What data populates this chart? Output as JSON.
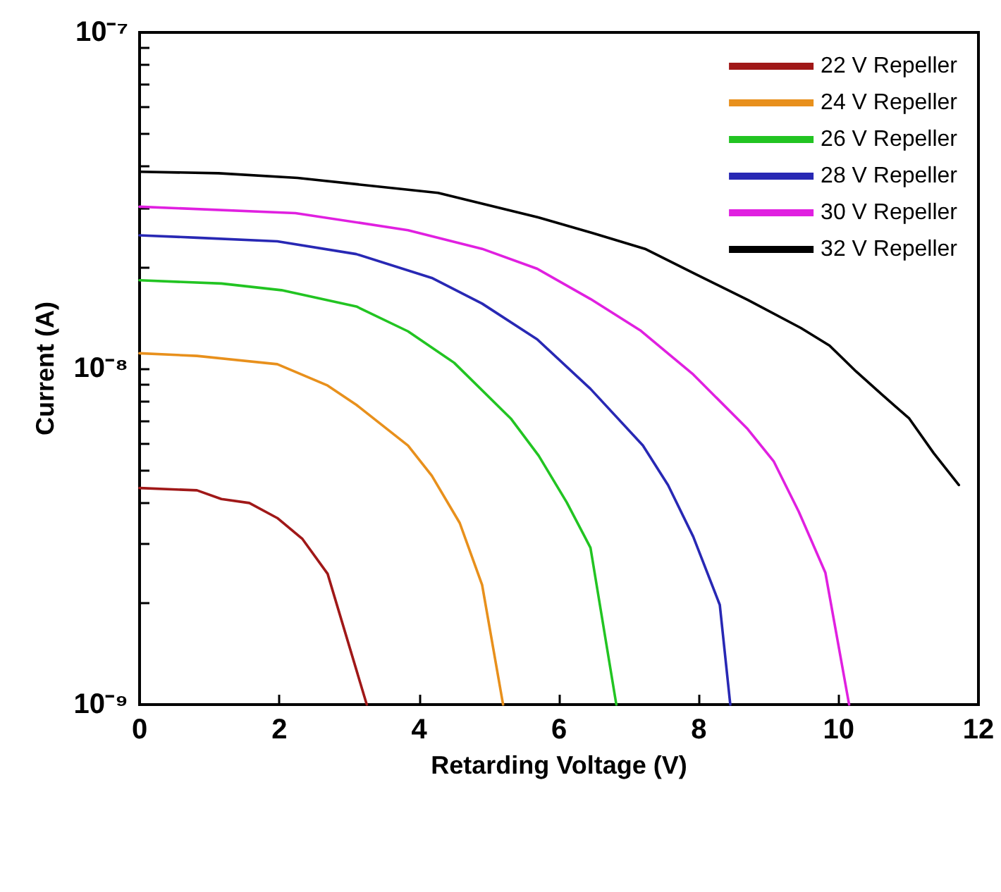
{
  "chart_data": {
    "type": "line",
    "xlabel": "Retarding Voltage (V)",
    "ylabel": "Current (A)",
    "log": "y",
    "legend": "top right",
    "marker": "none",
    "line_style": "solid",
    "grid": false,
    "xlim": [
      0,
      12
    ],
    "xticks": [
      0,
      2,
      4,
      6,
      8,
      10,
      12
    ],
    "ylim": [
      1e-09,
      1e-07
    ],
    "yticks": [
      {
        "value": 1e-07,
        "label": "10⁻⁷"
      },
      {
        "value": 9e-08,
        "label": null
      },
      {
        "value": 8e-08,
        "label": null
      },
      {
        "value": 7e-08,
        "label": null
      },
      {
        "value": 6e-08,
        "label": null
      },
      {
        "value": 5e-08,
        "label": null
      },
      {
        "value": 4e-08,
        "label": null
      },
      {
        "value": 3e-08,
        "label": null
      },
      {
        "value": 2e-08,
        "label": null
      },
      {
        "value": 1e-08,
        "label": "10⁻⁸"
      },
      {
        "value": 9e-09,
        "label": null
      },
      {
        "value": 8e-09,
        "label": null
      },
      {
        "value": 7e-09,
        "label": null
      },
      {
        "value": 6e-09,
        "label": null
      },
      {
        "value": 5e-09,
        "label": null
      },
      {
        "value": 4e-09,
        "label": null
      },
      {
        "value": 3e-09,
        "label": null
      },
      {
        "value": 2e-09,
        "label": null
      },
      {
        "value": 1e-09,
        "label": "10⁻⁹"
      }
    ],
    "series": [
      {
        "name": "22 V Repeller",
        "color": "#a01818",
        "x": [
          0,
          0.82,
          1.17,
          1.57,
          1.97,
          2.33,
          2.69,
          3.25
        ],
        "values": [
          4.41e-09,
          4.34e-09,
          4.09e-09,
          3.98e-09,
          3.59e-09,
          3.11e-09,
          2.45e-09,
          1e-09
        ]
      },
      {
        "name": "24 V Repeller",
        "color": "#e8901c",
        "x": [
          0,
          0.82,
          1.97,
          2.69,
          3.1,
          3.84,
          4.18,
          4.58,
          4.9,
          5.2
        ],
        "values": [
          1.11e-08,
          1.09e-08,
          1.03e-08,
          8.9e-09,
          7.8e-09,
          5.9e-09,
          4.8e-09,
          3.47e-09,
          2.27e-09,
          1e-09
        ]
      },
      {
        "name": "26 V Repeller",
        "color": "#22c422",
        "x": [
          0,
          1.17,
          2.03,
          3.1,
          3.84,
          4.5,
          5.31,
          5.71,
          6.11,
          6.45,
          6.82
        ],
        "values": [
          1.83e-08,
          1.79e-08,
          1.71e-08,
          1.53e-08,
          1.29e-08,
          1.04e-08,
          7.1e-09,
          5.5e-09,
          4e-09,
          2.93e-09,
          1e-09
        ]
      },
      {
        "name": "28 V Repeller",
        "color": "#2828b4",
        "x": [
          0,
          0.82,
          1.97,
          3.1,
          4.18,
          4.9,
          5.69,
          6.45,
          7.2,
          7.56,
          7.92,
          8.3,
          8.45
        ],
        "values": [
          2.49e-08,
          2.45e-08,
          2.39e-08,
          2.19e-08,
          1.86e-08,
          1.56e-08,
          1.22e-08,
          8.7e-09,
          5.9e-09,
          4.5e-09,
          3.16e-09,
          1.98e-09,
          1e-09
        ]
      },
      {
        "name": "30 V Repeller",
        "color": "#e020e0",
        "x": [
          0,
          2.23,
          3.84,
          4.9,
          5.69,
          6.45,
          7.16,
          7.92,
          8.7,
          9.07,
          9.43,
          9.81,
          10.15
        ],
        "values": [
          3.03e-08,
          2.9e-08,
          2.58e-08,
          2.27e-08,
          1.98e-08,
          1.61e-08,
          1.3e-08,
          9.6e-09,
          6.6e-09,
          5.3e-09,
          3.75e-09,
          2.47e-09,
          1e-09
        ]
      },
      {
        "name": "32 V Repeller",
        "color": "#000000",
        "x": [
          0,
          1.13,
          2.26,
          4.27,
          5.72,
          6.48,
          7.23,
          7.95,
          8.7,
          9.46,
          9.87,
          10.25,
          10.61,
          11.01,
          11.36,
          11.72
        ],
        "values": [
          3.85e-08,
          3.81e-08,
          3.69e-08,
          3.33e-08,
          2.81e-08,
          2.53e-08,
          2.27e-08,
          1.91e-08,
          1.6e-08,
          1.32e-08,
          1.17e-08,
          9.8e-09,
          8.4e-09,
          7.1e-09,
          5.6e-09,
          4.5e-09
        ]
      }
    ]
  }
}
